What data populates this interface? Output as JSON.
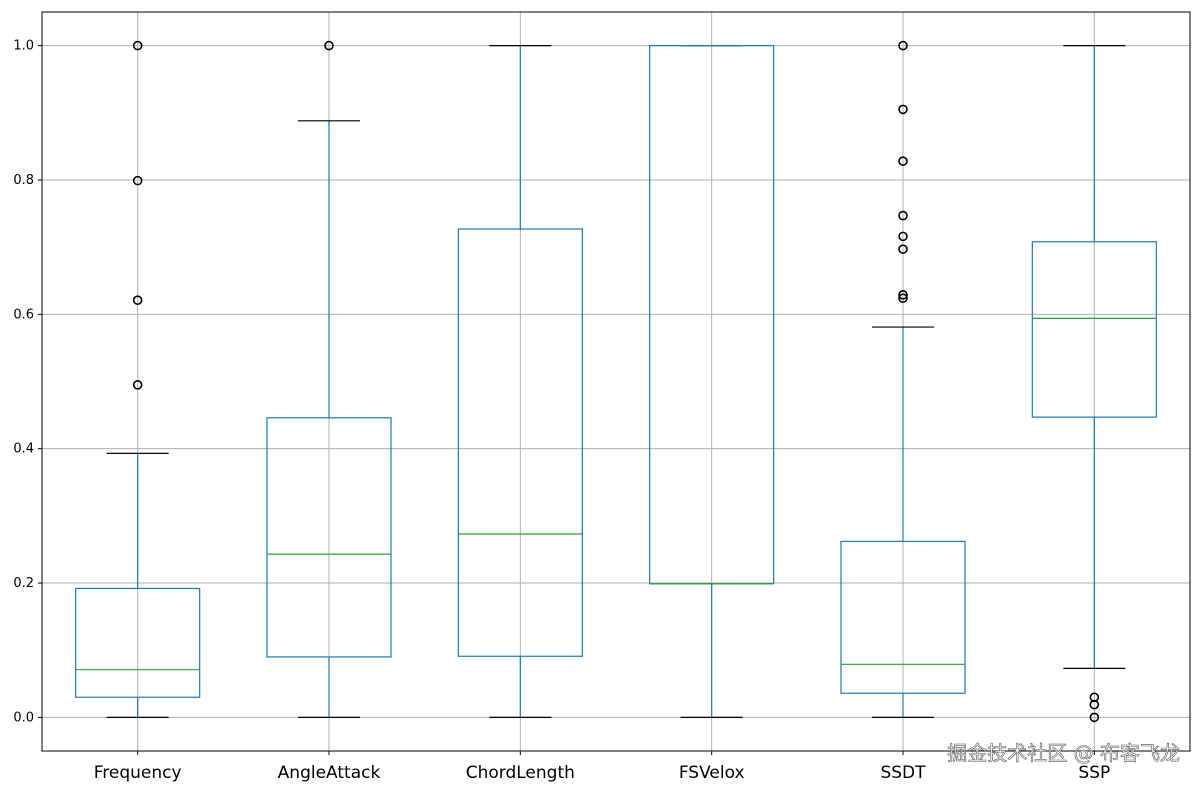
{
  "chart_data": {
    "type": "box",
    "title": "",
    "xlabel": "",
    "ylabel": "",
    "ylim": [
      -0.05,
      1.05
    ],
    "grid": true,
    "yticks": [
      "0.0",
      "0.2",
      "0.4",
      "0.6",
      "0.8",
      "1.0"
    ],
    "colors": {
      "box": "#1f77b4",
      "median": "#2ca02c",
      "cap": "#000000",
      "flier": "#000000",
      "grid": "#b0b0b0"
    },
    "categories": [
      "Frequency",
      "AngleAttack",
      "ChordLength",
      "FSVelox",
      "SSDT",
      "SSP"
    ],
    "boxes": [
      {
        "name": "Frequency",
        "whislo": 0.0,
        "q1": 0.03,
        "median": 0.071,
        "q3": 0.192,
        "whishi": 0.393,
        "fliers": [
          0.495,
          0.621,
          0.799,
          1.0
        ]
      },
      {
        "name": "AngleAttack",
        "whislo": 0.0,
        "q1": 0.09,
        "median": 0.243,
        "q3": 0.446,
        "whishi": 0.888,
        "fliers": [
          1.0
        ]
      },
      {
        "name": "ChordLength",
        "whislo": 0.0,
        "q1": 0.091,
        "median": 0.273,
        "q3": 0.727,
        "whishi": 1.0,
        "fliers": []
      },
      {
        "name": "FSVelox",
        "whislo": 0.0,
        "q1": 0.199,
        "median": 0.199,
        "q3": 1.0,
        "whishi": 1.0,
        "fliers": []
      },
      {
        "name": "SSDT",
        "whislo": 0.0,
        "q1": 0.036,
        "median": 0.079,
        "q3": 0.262,
        "whishi": 0.581,
        "fliers": [
          0.624,
          0.629,
          0.697,
          0.716,
          0.747,
          0.828,
          0.905,
          1.0
        ]
      },
      {
        "name": "SSP",
        "whislo": 0.073,
        "q1": 0.447,
        "median": 0.594,
        "q3": 0.708,
        "whishi": 1.0,
        "fliers": [
          0.0,
          0.019,
          0.03
        ]
      }
    ]
  },
  "watermark": "掘金技术社区 @ 布客飞龙"
}
